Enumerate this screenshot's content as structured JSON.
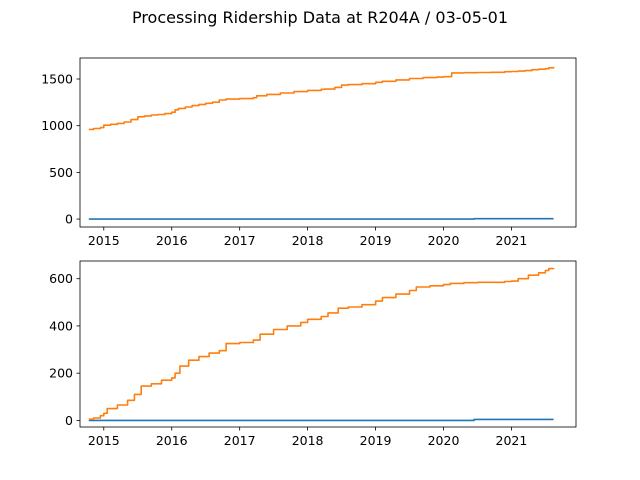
{
  "figure": {
    "title": "Processing Ridership Data at R204A / 03-05-01"
  },
  "colors": {
    "series_blue": "#1f77b4",
    "series_orange": "#ff7f0e"
  },
  "chart_data": [
    {
      "type": "line",
      "xlabel": "",
      "ylabel": "",
      "xlim": [
        2014.65,
        2021.95
      ],
      "ylim": [
        -85,
        1725
      ],
      "xticks": [
        2015,
        2016,
        2017,
        2018,
        2019,
        2020,
        2021
      ],
      "xtick_labels": [
        "2015",
        "2016",
        "2017",
        "2018",
        "2019",
        "2020",
        "2021"
      ],
      "yticks": [
        0,
        500,
        1000,
        1500
      ],
      "ytick_labels": [
        "0",
        "500",
        "1000",
        "1500"
      ],
      "grid": false,
      "series": [
        {
          "color": "#1f77b4",
          "x": [
            2014.78,
            2015.5,
            2016.5,
            2017.5,
            2018.5,
            2019.5,
            2020.35,
            2020.45,
            2021.0,
            2021.62
          ],
          "y": [
            0,
            0,
            0,
            0,
            0,
            0,
            0,
            4,
            4,
            4
          ]
        },
        {
          "color": "#ff7f0e",
          "x": [
            2014.78,
            2014.85,
            2014.95,
            2015.0,
            2015.1,
            2015.2,
            2015.3,
            2015.4,
            2015.5,
            2015.6,
            2015.7,
            2015.8,
            2015.9,
            2016.0,
            2016.05,
            2016.1,
            2016.2,
            2016.3,
            2016.4,
            2016.5,
            2016.6,
            2016.7,
            2016.8,
            2017.0,
            2017.2,
            2017.25,
            2017.4,
            2017.6,
            2017.8,
            2018.0,
            2018.2,
            2018.25,
            2018.4,
            2018.5,
            2018.6,
            2018.8,
            2019.0,
            2019.1,
            2019.3,
            2019.5,
            2019.7,
            2019.9,
            2020.0,
            2020.1,
            2020.12,
            2020.3,
            2020.5,
            2020.7,
            2020.9,
            2021.0,
            2021.1,
            2021.2,
            2021.3,
            2021.4,
            2021.5,
            2021.55,
            2021.62
          ],
          "y": [
            960,
            970,
            980,
            1005,
            1015,
            1025,
            1040,
            1065,
            1095,
            1105,
            1115,
            1120,
            1130,
            1145,
            1170,
            1185,
            1200,
            1215,
            1228,
            1240,
            1252,
            1275,
            1285,
            1290,
            1300,
            1320,
            1335,
            1350,
            1365,
            1378,
            1390,
            1392,
            1410,
            1435,
            1440,
            1450,
            1465,
            1475,
            1490,
            1505,
            1515,
            1520,
            1525,
            1528,
            1565,
            1568,
            1570,
            1572,
            1578,
            1580,
            1585,
            1590,
            1600,
            1605,
            1610,
            1620,
            1630
          ]
        }
      ]
    },
    {
      "type": "line",
      "xlabel": "",
      "ylabel": "",
      "xlim": [
        2014.65,
        2021.95
      ],
      "ylim": [
        -28,
        675
      ],
      "xticks": [
        2015,
        2016,
        2017,
        2018,
        2019,
        2020,
        2021
      ],
      "xtick_labels": [
        "2015",
        "2016",
        "2017",
        "2018",
        "2019",
        "2020",
        "2021"
      ],
      "yticks": [
        0,
        200,
        400,
        600
      ],
      "ytick_labels": [
        "0",
        "200",
        "400",
        "600"
      ],
      "grid": false,
      "series": [
        {
          "color": "#1f77b4",
          "x": [
            2014.78,
            2015.5,
            2016.5,
            2017.5,
            2018.5,
            2019.5,
            2020.35,
            2020.45,
            2021.0,
            2021.62
          ],
          "y": [
            0,
            0,
            0,
            0,
            0,
            0,
            0,
            4,
            4,
            4
          ]
        },
        {
          "color": "#ff7f0e",
          "x": [
            2014.78,
            2014.85,
            2014.95,
            2015.0,
            2015.05,
            2015.2,
            2015.35,
            2015.45,
            2015.55,
            2015.7,
            2015.85,
            2016.0,
            2016.05,
            2016.12,
            2016.25,
            2016.4,
            2016.55,
            2016.7,
            2016.8,
            2017.0,
            2017.2,
            2017.3,
            2017.5,
            2017.7,
            2017.9,
            2018.0,
            2018.2,
            2018.3,
            2018.45,
            2018.6,
            2018.8,
            2019.0,
            2019.1,
            2019.3,
            2019.5,
            2019.6,
            2019.8,
            2020.0,
            2020.1,
            2020.3,
            2020.5,
            2020.7,
            2020.9,
            2021.0,
            2021.1,
            2021.25,
            2021.4,
            2021.5,
            2021.55,
            2021.62
          ],
          "y": [
            5,
            10,
            20,
            30,
            50,
            65,
            85,
            110,
            145,
            155,
            170,
            180,
            200,
            230,
            255,
            270,
            285,
            295,
            325,
            330,
            340,
            365,
            385,
            400,
            415,
            428,
            440,
            455,
            475,
            480,
            490,
            505,
            520,
            535,
            550,
            565,
            570,
            575,
            580,
            583,
            585,
            585,
            588,
            590,
            600,
            615,
            625,
            635,
            643,
            645
          ]
        }
      ]
    }
  ]
}
